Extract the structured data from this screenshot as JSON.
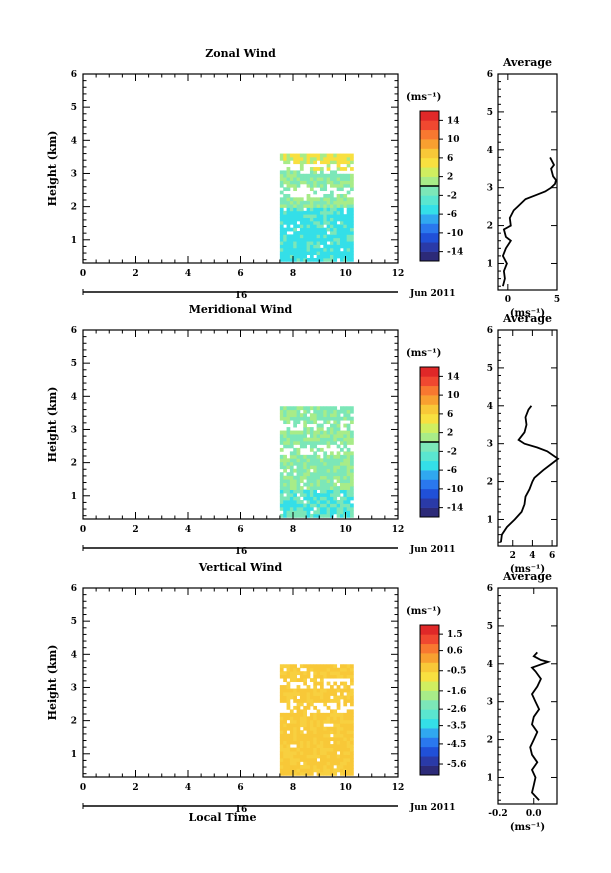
{
  "figure": {
    "xlabel": "Local Time",
    "date_label": "Jun 2011",
    "day_label": "16",
    "ylabel": "Height (km)",
    "xticks": [
      "0",
      "2",
      "4",
      "6",
      "8",
      "10",
      "12"
    ],
    "yticks": [
      "1",
      "2",
      "3",
      "4",
      "5",
      "6"
    ],
    "unit_label": "(ms⁻¹)",
    "average_title": "Average",
    "average_xlabel": "(ms⁻¹)"
  },
  "chart_data": [
    {
      "type": "heatmap",
      "title": "Zonal Wind",
      "xlim": [
        0,
        12
      ],
      "ylim": [
        0.3,
        6
      ],
      "colorbar_ticks": [
        "14",
        "10",
        "6",
        "2",
        "-2",
        "-6",
        "-10",
        "-14"
      ],
      "colorbar_range": [
        -16,
        16
      ],
      "data_extent": {
        "x": [
          7.5,
          10.3
        ],
        "y": [
          0.35,
          3.6
        ]
      },
      "dominant_colors": [
        "#34dfe8",
        "#7ce7b8",
        "#a8ec88",
        "#f8e040"
      ],
      "average_profile": {
        "xlim": [
          -1,
          5
        ],
        "xticks": [
          "0",
          "5"
        ],
        "x": [
          -0.5,
          -0.3,
          -0.4,
          -0.1,
          -0.5,
          -0.2,
          0.3,
          -0.2,
          -0.4,
          0.3,
          0.2,
          0.6,
          1.0,
          1.8,
          2.8,
          3.8,
          4.4,
          4.8,
          4.9,
          4.6,
          4.4,
          4.7,
          4.3
        ],
        "y": [
          0.4,
          0.6,
          0.8,
          1.0,
          1.2,
          1.4,
          1.6,
          1.7,
          1.9,
          2.0,
          2.2,
          2.4,
          2.5,
          2.7,
          2.8,
          2.9,
          3.0,
          3.1,
          3.2,
          3.3,
          3.5,
          3.6,
          3.8
        ]
      }
    },
    {
      "type": "heatmap",
      "title": "Meridional Wind",
      "xlim": [
        0,
        12
      ],
      "ylim": [
        0.3,
        6
      ],
      "colorbar_ticks": [
        "14",
        "10",
        "6",
        "2",
        "-2",
        "-6",
        "-10",
        "-14"
      ],
      "colorbar_range": [
        -16,
        16
      ],
      "data_extent": {
        "x": [
          7.5,
          10.3
        ],
        "y": [
          0.35,
          3.7
        ]
      },
      "dominant_colors": [
        "#7ce7b8",
        "#a8ec88",
        "#34dfe8"
      ],
      "average_profile": {
        "xlim": [
          0.5,
          6.5
        ],
        "xticks": [
          "2",
          "4",
          "6"
        ],
        "x": [
          0.8,
          0.9,
          1.4,
          2.2,
          2.9,
          3.2,
          3.3,
          3.7,
          4.0,
          4.2,
          5.1,
          6.1,
          6.6,
          5.5,
          4.5,
          3.2,
          2.6,
          3.2,
          3.4,
          3.3,
          3.6,
          3.9
        ],
        "y": [
          0.4,
          0.6,
          0.8,
          1.0,
          1.2,
          1.4,
          1.6,
          1.8,
          2.0,
          2.1,
          2.3,
          2.5,
          2.6,
          2.8,
          2.9,
          3.0,
          3.1,
          3.3,
          3.5,
          3.7,
          3.9,
          4.0
        ]
      }
    },
    {
      "type": "heatmap",
      "title": "Vertical Wind",
      "xlim": [
        0,
        12
      ],
      "ylim": [
        0.3,
        6
      ],
      "colorbar_ticks": [
        "1.5",
        "0.6",
        "-0.5",
        "-1.6",
        "-2.6",
        "-3.5",
        "-4.5",
        "-5.6"
      ],
      "colorbar_range": [
        -6.2,
        2.0
      ],
      "data_extent": {
        "x": [
          7.5,
          10.3
        ],
        "y": [
          0.35,
          3.7
        ]
      },
      "dominant_colors": [
        "#f8c838",
        "#f8d040"
      ],
      "average_profile": {
        "xlim": [
          -0.2,
          0.13
        ],
        "xticks": [
          "-0.2",
          "0.0"
        ],
        "x": [
          0.03,
          -0.01,
          0.0,
          0.01,
          -0.01,
          0.02,
          -0.01,
          -0.02,
          0.0,
          0.02,
          -0.01,
          0.0,
          0.03,
          0.01,
          -0.01,
          0.02,
          0.04,
          0.01,
          -0.01,
          0.05,
          0.08,
          0.04,
          0.0,
          0.02
        ],
        "y": [
          0.4,
          0.6,
          0.8,
          1.0,
          1.2,
          1.4,
          1.6,
          1.8,
          2.0,
          2.2,
          2.4,
          2.6,
          2.8,
          3.0,
          3.2,
          3.4,
          3.6,
          3.8,
          3.9,
          4.0,
          4.05,
          4.1,
          4.2,
          4.3
        ]
      }
    }
  ]
}
